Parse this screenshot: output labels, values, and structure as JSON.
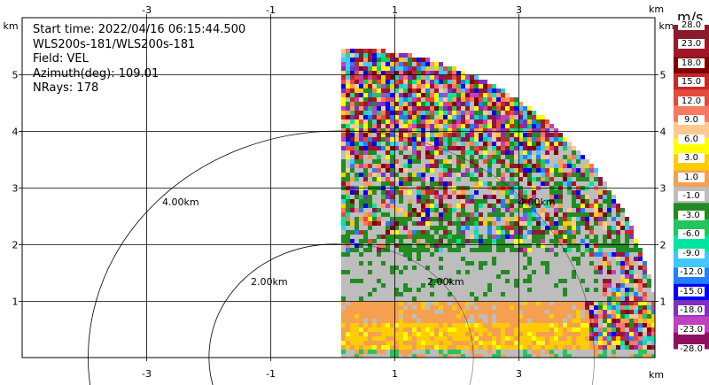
{
  "info": {
    "start_time": "Start time: 2022/04/16 06:15:44.500",
    "instrument": "WLS200s-181/WLS200s-181",
    "field": "Field: VEL",
    "azimuth": "Azimuth(deg): 109.01",
    "nrays": "NRays: 178"
  },
  "axes": {
    "x_ticks": [
      "-3",
      "-1",
      "1",
      "3"
    ],
    "y_ticks": [
      "1",
      "2",
      "3",
      "4",
      "5"
    ],
    "unit": "km"
  },
  "range_rings": [
    "2.00km",
    "4.00km"
  ],
  "colorbar": {
    "unit": "m/s",
    "labels": [
      "28.0",
      "23.0",
      "18.0",
      "15.0",
      "12.0",
      "9.0",
      "6.0",
      "3.0",
      "1.0",
      "-1.0",
      "-3.0",
      "-6.0",
      "-9.0",
      "-12.0",
      "-15.0",
      "-18.0",
      "-23.0",
      "-28.0"
    ],
    "colors": [
      "#8b1a2a",
      "#a01828",
      "#800000",
      "#c62828",
      "#e64a3c",
      "#f87860",
      "#ffc890",
      "#ffff00",
      "#ffcc00",
      "#f5a050",
      "#bdbdbd",
      "#228b22",
      "#22c55e",
      "#00e5a0",
      "#40c8ff",
      "#2080ff",
      "#0000ff",
      "#8030c0",
      "#c040c0",
      "#901060"
    ]
  }
}
